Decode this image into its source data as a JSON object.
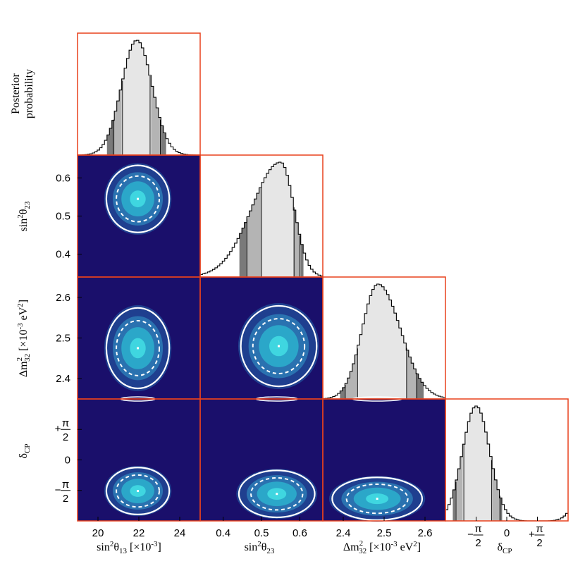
{
  "figure": {
    "ylabel_top": [
      "Posterior",
      "probability"
    ]
  },
  "colors": {
    "frame": "#e8401c",
    "background": "#1a0f6b",
    "level1": "#1f3f8f",
    "level2": "#2a72b0",
    "level3": "#2ba7c9",
    "level4": "#3fd6e0",
    "hpd_68": "#e6e6e6",
    "hpd_90": "#b4b4b4",
    "hpd_95": "#7a7a7a",
    "contour": "#ffffff"
  },
  "chart_data": {
    "type": "triangle-posterior",
    "params": [
      {
        "id": "s13",
        "label": "sin²θ₁₃ [×10⁻³]",
        "range": [
          19.0,
          25.0
        ],
        "ticks": [
          "20",
          "22",
          "24"
        ],
        "tick_values": [
          20,
          22,
          24
        ]
      },
      {
        "id": "s23",
        "label": "sin²θ₂₃",
        "range": [
          0.34,
          0.66
        ],
        "ticks": [
          "0.4",
          "0.5",
          "0.6"
        ],
        "tick_values": [
          0.4,
          0.5,
          0.6
        ]
      },
      {
        "id": "dm32",
        "label": "Δm²₃₂ [×10⁻³ eV²]",
        "range": [
          2.35,
          2.65
        ],
        "ticks": [
          "2.4",
          "2.5",
          "2.6"
        ],
        "tick_values": [
          2.4,
          2.5,
          2.6
        ]
      },
      {
        "id": "dcp",
        "label": "δCP",
        "range": [
          -3.14159,
          3.14159
        ],
        "ticks": [
          "−π/2",
          "0",
          "+π/2"
        ],
        "tick_values": [
          -1.5708,
          0,
          1.5708
        ]
      }
    ],
    "marginals": [
      {
        "param": "s13",
        "mean": 21.9,
        "sigma": 0.75,
        "skew": 0,
        "hpd68": [
          21.2,
          22.55
        ],
        "hpd90": [
          20.75,
          23.05
        ],
        "hpd95": [
          20.5,
          23.3
        ]
      },
      {
        "param": "s23",
        "mode": 0.55,
        "sigma_left": 0.075,
        "sigma_right": 0.035,
        "hpd68": [
          0.5,
          0.585
        ],
        "hpd90": [
          0.462,
          0.6
        ],
        "hpd95": [
          0.445,
          0.61
        ]
      },
      {
        "param": "dm32",
        "mean": 2.485,
        "sigma": 0.047,
        "skew": 0.008,
        "hpd68": [
          2.435,
          2.555
        ],
        "hpd90": [
          2.405,
          2.58
        ],
        "hpd95": [
          2.39,
          2.595
        ]
      },
      {
        "param": "dcp",
        "mode": -1.57,
        "sigma": 0.7,
        "hpd68": [
          -2.2,
          -0.78
        ],
        "hpd90": [
          -2.6,
          -0.35
        ],
        "hpd95": [
          -2.8,
          -0.2
        ]
      }
    ],
    "joints": [
      {
        "x": "s13",
        "y": "s23",
        "best_fit": [
          21.95,
          0.545
        ],
        "sx": 0.7,
        "sy": 0.04
      },
      {
        "x": "s13",
        "y": "dm32",
        "best_fit": [
          21.95,
          2.475
        ],
        "sx": 0.7,
        "sy": 0.045
      },
      {
        "x": "s23",
        "y": "dm32",
        "best_fit": [
          0.545,
          2.48
        ],
        "sx": 0.045,
        "sy": 0.045
      },
      {
        "x": "s13",
        "y": "dcp",
        "best_fit": [
          21.95,
          -1.6
        ],
        "sx": 0.7,
        "sy": 0.55
      },
      {
        "x": "s23",
        "y": "dcp",
        "best_fit": [
          0.54,
          -1.75
        ],
        "sx": 0.045,
        "sy": 0.55
      },
      {
        "x": "dm32",
        "y": "dcp",
        "best_fit": [
          2.483,
          -2.0
        ],
        "sx": 0.05,
        "sy": 0.5
      }
    ]
  }
}
